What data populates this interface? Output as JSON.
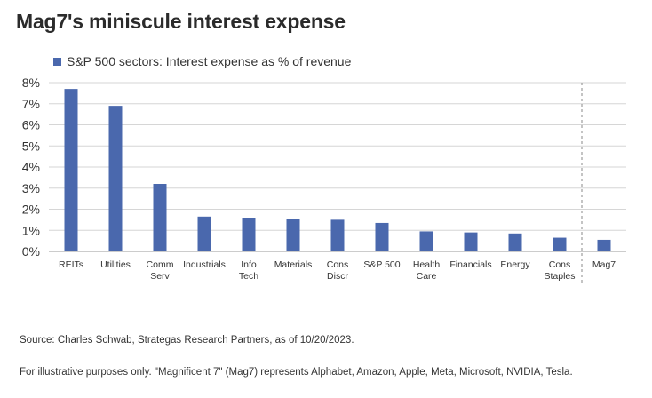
{
  "title": "Mag7's miniscule interest expense",
  "legend_label": "S&P 500 sectors: Interest expense as % of revenue",
  "source": "Source: Charles Schwab, Strategas Research Partners, as of 10/20/2023.",
  "disclaimer": "For illustrative purposes only.  \"Magnificent 7\" (Mag7) represents Alphabet, Amazon, Apple, Meta, Microsoft, NVIDIA, Tesla.",
  "colors": {
    "bar": "#4a68ad",
    "grid": "#d6d6d6",
    "separator": "#888888"
  },
  "chart_data": {
    "type": "bar",
    "categories": [
      [
        "REITs"
      ],
      [
        "Utilities"
      ],
      [
        "Comm",
        "Serv"
      ],
      [
        "Industrials"
      ],
      [
        "Info",
        "Tech"
      ],
      [
        "Materials"
      ],
      [
        "Cons",
        "Discr"
      ],
      [
        "S&P 500"
      ],
      [
        "Health",
        "Care"
      ],
      [
        "Financials"
      ],
      [
        "Energy"
      ],
      [
        "Cons",
        "Staples"
      ],
      [
        "Mag7"
      ]
    ],
    "series": [
      {
        "name": "S&P 500 sectors: Interest expense as % of revenue",
        "values": [
          7.7,
          6.9,
          3.2,
          1.65,
          1.6,
          1.55,
          1.5,
          1.35,
          0.95,
          0.9,
          0.85,
          0.65,
          0.55
        ]
      }
    ],
    "yticks": [
      "0%",
      "1%",
      "2%",
      "3%",
      "4%",
      "5%",
      "6%",
      "7%",
      "8%"
    ],
    "ylim": [
      0,
      8
    ],
    "grid": true,
    "separator_before_index": 12,
    "legend_position": "top-left"
  }
}
